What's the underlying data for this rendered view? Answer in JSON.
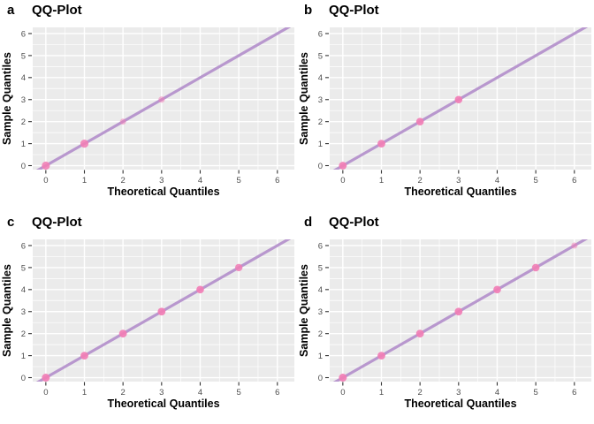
{
  "figure": {
    "background": "#FFFFFF",
    "rows": 2,
    "cols": 2
  },
  "theme": {
    "panel_background": "#EBEBEB",
    "grid_color": "#FFFFFF",
    "tick_label_color": "#4D4D4D",
    "tick_mark_color": "#333333",
    "axis_title_color": "#000000",
    "title_color": "#000000",
    "line_color": "#B897CE",
    "point_color": "#F17EB5"
  },
  "chart_data": [
    {
      "type": "scatter",
      "tag": "a",
      "title": "QQ-Plot",
      "xlabel": "Theoretical Quantiles",
      "ylabel": "Sample Quantiles",
      "xlim": [
        -0.34,
        6.44
      ],
      "ylim": [
        -0.18,
        6.28
      ],
      "x_ticks": [
        0,
        1,
        2,
        3,
        4,
        5,
        6
      ],
      "y_ticks": [
        0,
        1,
        2,
        3,
        4,
        5,
        6
      ],
      "grid": true,
      "legend": "none",
      "line": {
        "type": "identity",
        "slope": 1,
        "intercept": 0,
        "width": 3.2
      },
      "points": [
        {
          "x": 0,
          "y": 0,
          "alpha": 0.88,
          "r": 4.6
        },
        {
          "x": 1,
          "y": 1,
          "alpha": 0.88,
          "r": 4.6
        },
        {
          "x": 2,
          "y": 2,
          "alpha": 0.5,
          "r": 3.4
        },
        {
          "x": 3,
          "y": 3,
          "alpha": 0.5,
          "r": 3.6
        }
      ]
    },
    {
      "type": "scatter",
      "tag": "b",
      "title": "QQ-Plot",
      "xlabel": "Theoretical Quantiles",
      "ylabel": "Sample Quantiles",
      "xlim": [
        -0.34,
        6.44
      ],
      "ylim": [
        -0.18,
        6.28
      ],
      "x_ticks": [
        0,
        1,
        2,
        3,
        4,
        5,
        6
      ],
      "y_ticks": [
        0,
        1,
        2,
        3,
        4,
        5,
        6
      ],
      "grid": true,
      "legend": "none",
      "line": {
        "type": "identity",
        "slope": 1,
        "intercept": 0,
        "width": 3.2
      },
      "points": [
        {
          "x": 0,
          "y": 0,
          "alpha": 0.92,
          "r": 4.4
        },
        {
          "x": 1,
          "y": 1,
          "alpha": 0.92,
          "r": 4.4
        },
        {
          "x": 2,
          "y": 2,
          "alpha": 0.92,
          "r": 4.3
        },
        {
          "x": 3,
          "y": 3,
          "alpha": 0.92,
          "r": 4.3
        }
      ]
    },
    {
      "type": "scatter",
      "tag": "c",
      "title": "QQ-Plot",
      "xlabel": "Theoretical Quantiles",
      "ylabel": "Sample Quantiles",
      "xlim": [
        -0.34,
        6.44
      ],
      "ylim": [
        -0.18,
        6.28
      ],
      "x_ticks": [
        0,
        1,
        2,
        3,
        4,
        5,
        6
      ],
      "y_ticks": [
        0,
        1,
        2,
        3,
        4,
        5,
        6
      ],
      "grid": true,
      "legend": "none",
      "line": {
        "type": "identity",
        "slope": 1,
        "intercept": 0,
        "width": 3.2
      },
      "points": [
        {
          "x": 0,
          "y": 0,
          "alpha": 0.92,
          "r": 4.5
        },
        {
          "x": 1,
          "y": 1,
          "alpha": 0.92,
          "r": 4.4
        },
        {
          "x": 2,
          "y": 2,
          "alpha": 0.92,
          "r": 4.4
        },
        {
          "x": 3,
          "y": 3,
          "alpha": 0.92,
          "r": 4.4
        },
        {
          "x": 4,
          "y": 4,
          "alpha": 0.92,
          "r": 4.3
        },
        {
          "x": 5,
          "y": 5,
          "alpha": 0.85,
          "r": 4.2
        }
      ]
    },
    {
      "type": "scatter",
      "tag": "d",
      "title": "QQ-Plot",
      "xlabel": "Theoretical Quantiles",
      "ylabel": "Sample Quantiles",
      "xlim": [
        -0.34,
        6.44
      ],
      "ylim": [
        -0.18,
        6.28
      ],
      "x_ticks": [
        0,
        1,
        2,
        3,
        4,
        5,
        6
      ],
      "y_ticks": [
        0,
        1,
        2,
        3,
        4,
        5,
        6
      ],
      "grid": true,
      "legend": "none",
      "line": {
        "type": "identity",
        "slope": 1,
        "intercept": 0,
        "width": 3.2
      },
      "points": [
        {
          "x": 0,
          "y": 0,
          "alpha": 0.92,
          "r": 4.5
        },
        {
          "x": 1,
          "y": 1,
          "alpha": 0.92,
          "r": 4.4
        },
        {
          "x": 2,
          "y": 2,
          "alpha": 0.92,
          "r": 4.4
        },
        {
          "x": 3,
          "y": 3,
          "alpha": 0.92,
          "r": 4.4
        },
        {
          "x": 4,
          "y": 4,
          "alpha": 0.92,
          "r": 4.3
        },
        {
          "x": 5,
          "y": 5,
          "alpha": 0.9,
          "r": 4.3
        },
        {
          "x": 6,
          "y": 6,
          "alpha": 0.5,
          "r": 3.5
        }
      ]
    }
  ]
}
